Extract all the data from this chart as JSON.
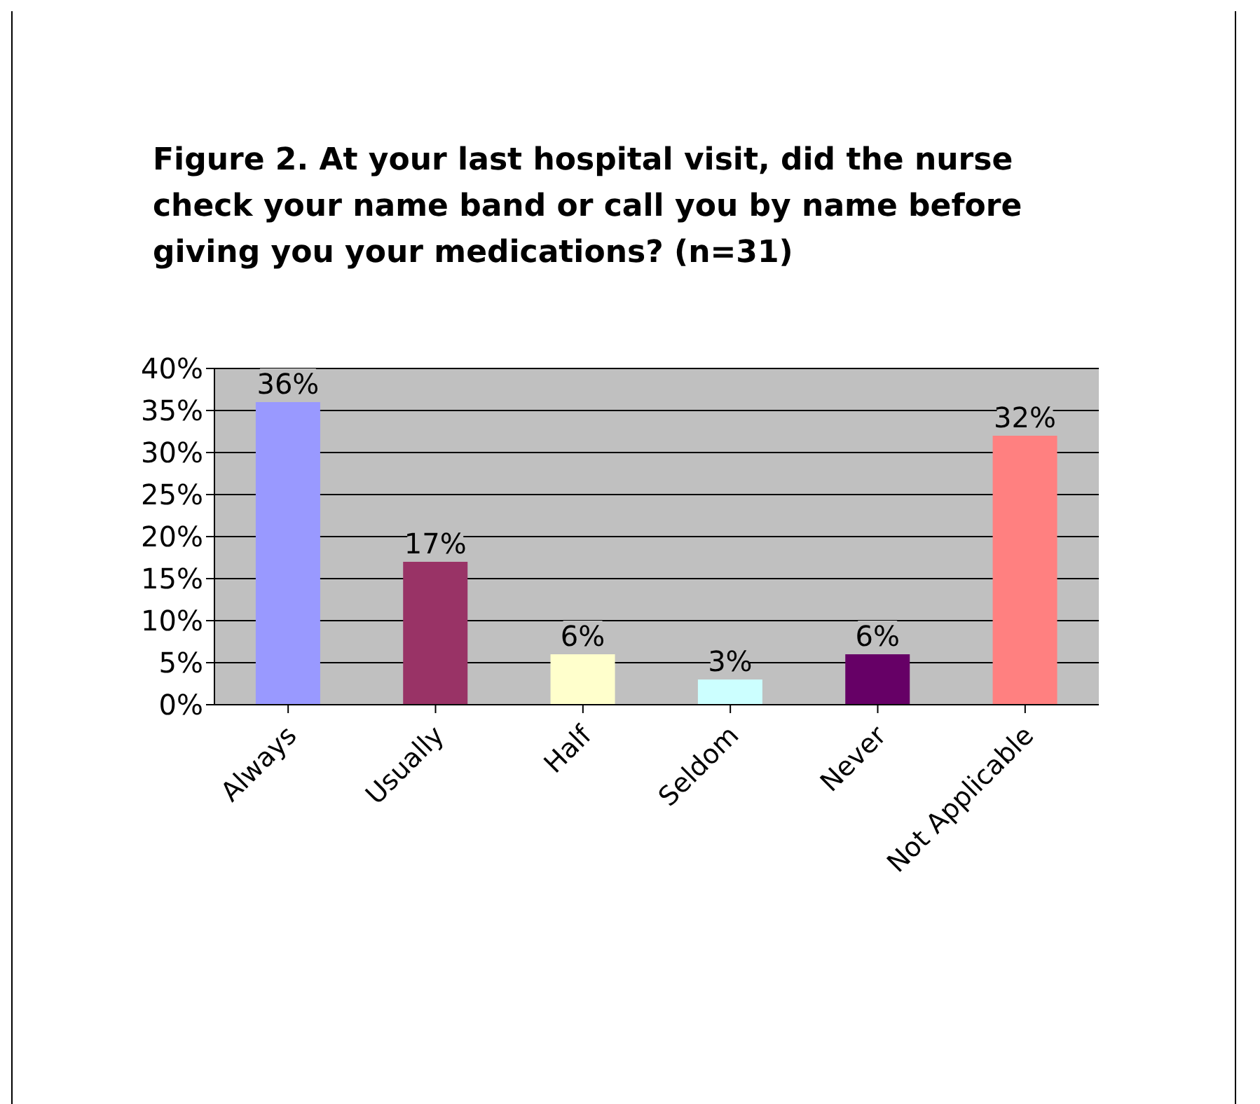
{
  "chart_data": {
    "type": "bar",
    "title": "Figure 2. At your last hospital visit, did the nurse check your name band or call you by name before giving you your medications? (n=31)",
    "categories": [
      "Always",
      "Usually",
      "Half",
      "Seldom",
      "Never",
      "Not Applicable"
    ],
    "values": [
      36,
      17,
      6,
      3,
      6,
      32
    ],
    "colors": [
      "#9999ff",
      "#993366",
      "#ffffcc",
      "#ccffff",
      "#660066",
      "#ff8080"
    ],
    "value_labels": [
      "36%",
      "17%",
      "6%",
      "3%",
      "6%",
      "32%"
    ],
    "ylim": [
      0,
      40
    ],
    "yticks": [
      {
        "value": 0,
        "label": "0%"
      },
      {
        "value": 5,
        "label": "5%"
      },
      {
        "value": 10,
        "label": "10%"
      },
      {
        "value": 15,
        "label": "15%"
      },
      {
        "value": 20,
        "label": "20%"
      },
      {
        "value": 25,
        "label": "25%"
      },
      {
        "value": 30,
        "label": "30%"
      },
      {
        "value": 35,
        "label": "35%"
      },
      {
        "value": 40,
        "label": "40%"
      }
    ],
    "grid": "y"
  }
}
